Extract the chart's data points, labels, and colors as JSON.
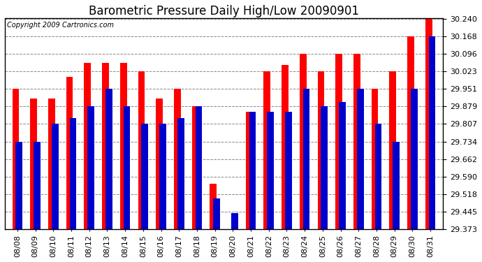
{
  "title": "Barometric Pressure Daily High/Low 20090901",
  "copyright": "Copyright 2009 Cartronics.com",
  "dates": [
    "08/08",
    "08/09",
    "08/10",
    "08/11",
    "08/12",
    "08/13",
    "08/14",
    "08/15",
    "08/16",
    "08/17",
    "08/18",
    "08/19",
    "08/20",
    "08/21",
    "08/22",
    "08/23",
    "08/24",
    "08/25",
    "08/26",
    "08/27",
    "08/28",
    "08/29",
    "08/30",
    "08/31"
  ],
  "highs": [
    29.951,
    29.912,
    29.912,
    30.0,
    30.058,
    30.058,
    30.058,
    30.023,
    29.912,
    29.951,
    29.879,
    29.561,
    29.373,
    29.856,
    30.023,
    30.05,
    30.096,
    30.023,
    30.096,
    30.096,
    29.951,
    30.023,
    30.168,
    30.24
  ],
  "lows": [
    29.734,
    29.734,
    29.807,
    29.83,
    29.879,
    29.951,
    29.879,
    29.807,
    29.807,
    29.83,
    29.879,
    29.5,
    29.44,
    29.856,
    29.856,
    29.856,
    29.951,
    29.879,
    29.897,
    29.951,
    29.807,
    29.734,
    29.951,
    30.168
  ],
  "high_color": "#ff0000",
  "low_color": "#0000cc",
  "background_color": "#ffffff",
  "plot_bg_color": "#ffffff",
  "grid_color": "#888888",
  "ymin": 29.373,
  "ymax": 30.24,
  "yticks": [
    29.373,
    29.445,
    29.518,
    29.59,
    29.662,
    29.734,
    29.807,
    29.879,
    29.951,
    30.023,
    30.096,
    30.168,
    30.24
  ],
  "title_fontsize": 12,
  "tick_fontsize": 8,
  "copyright_fontsize": 7
}
